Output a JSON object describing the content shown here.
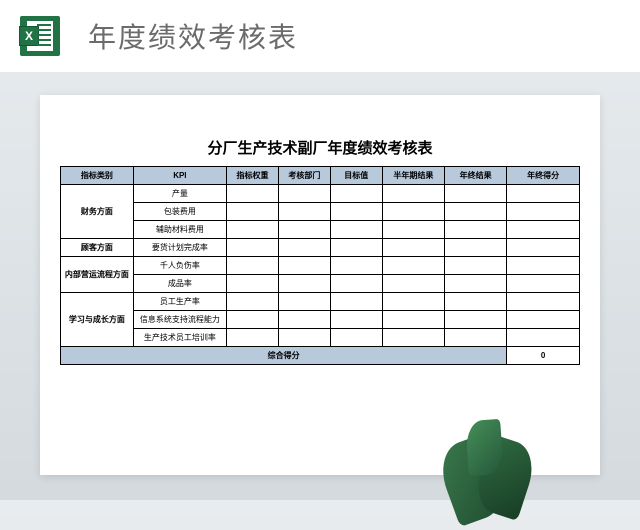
{
  "header": {
    "icon_letter": "X",
    "title": "年度绩效考核表"
  },
  "sheet": {
    "title": "分厂生产技术副厂年度绩效考核表",
    "columns": [
      "指标类别",
      "KPI",
      "指标权重",
      "考核部门",
      "目标值",
      "半年期结果",
      "年终结果",
      "年终得分"
    ],
    "col_widths": [
      "14%",
      "18%",
      "10%",
      "10%",
      "10%",
      "12%",
      "12%",
      "14%"
    ],
    "categories": [
      {
        "name": "财务方面",
        "kpis": [
          "产量",
          "包装费用",
          "辅助材料费用"
        ]
      },
      {
        "name": "顾客方面",
        "kpis": [
          "要货计划完成率"
        ]
      },
      {
        "name": "内部营运流程方面",
        "kpis": [
          "千人负伤率",
          "成品率"
        ]
      },
      {
        "name": "学习与成长方面",
        "kpis": [
          "员工生产率",
          "信息系统支持流程能力",
          "生产技术员工培训率"
        ]
      }
    ],
    "total_label": "综合得分",
    "total_value": "0"
  },
  "colors": {
    "header_bg": "#b8c9dc",
    "border": "#000000",
    "page_bg_top": "#e8ecef",
    "page_bg_bottom": "#d4dade",
    "excel_green": "#217346"
  }
}
